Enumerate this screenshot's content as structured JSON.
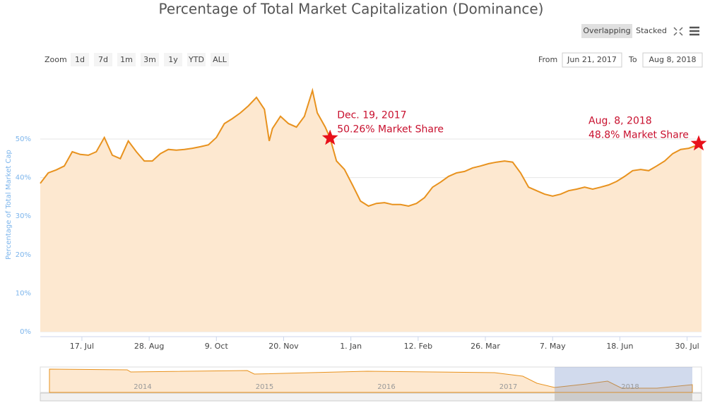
{
  "chart_data": {
    "type": "area",
    "title": "Percentage of Total Market Capitalization (Dominance)",
    "y_label": "Percentage of Total Market Cap",
    "color": "#e8921e",
    "fill": "#fde8d0",
    "x": [
      "2017-06-21",
      "2017-06-26",
      "2017-07-01",
      "2017-07-06",
      "2017-07-11",
      "2017-07-16",
      "2017-07-21",
      "2017-07-26",
      "2017-07-31",
      "2017-08-05",
      "2017-08-10",
      "2017-08-15",
      "2017-08-20",
      "2017-08-25",
      "2017-08-30",
      "2017-09-04",
      "2017-09-09",
      "2017-09-14",
      "2017-09-19",
      "2017-09-24",
      "2017-09-29",
      "2017-10-04",
      "2017-10-09",
      "2017-10-14",
      "2017-10-19",
      "2017-10-24",
      "2017-10-29",
      "2017-11-03",
      "2017-11-08",
      "2017-11-11",
      "2017-11-13",
      "2017-11-18",
      "2017-11-23",
      "2017-11-28",
      "2017-12-03",
      "2017-12-08",
      "2017-12-11",
      "2017-12-16",
      "2017-12-19",
      "2017-12-23",
      "2017-12-28",
      "2018-01-02",
      "2018-01-07",
      "2018-01-12",
      "2018-01-17",
      "2018-01-22",
      "2018-01-27",
      "2018-02-01",
      "2018-02-06",
      "2018-02-11",
      "2018-02-16",
      "2018-02-21",
      "2018-02-26",
      "2018-03-03",
      "2018-03-08",
      "2018-03-13",
      "2018-03-18",
      "2018-03-23",
      "2018-03-28",
      "2018-04-02",
      "2018-04-07",
      "2018-04-12",
      "2018-04-17",
      "2018-04-22",
      "2018-04-27",
      "2018-05-02",
      "2018-05-07",
      "2018-05-12",
      "2018-05-17",
      "2018-05-22",
      "2018-05-27",
      "2018-06-01",
      "2018-06-06",
      "2018-06-11",
      "2018-06-16",
      "2018-06-21",
      "2018-06-26",
      "2018-07-01",
      "2018-07-06",
      "2018-07-11",
      "2018-07-16",
      "2018-07-21",
      "2018-07-26",
      "2018-07-31",
      "2018-08-08"
    ],
    "values": [
      38.5,
      41.2,
      42,
      43,
      46.7,
      46,
      45.8,
      46.7,
      50.4,
      45.8,
      44.9,
      49.5,
      46.7,
      44.3,
      44.3,
      46.2,
      47.3,
      47.1,
      47.3,
      47.6,
      48,
      48.5,
      50.4,
      54,
      55.3,
      56.8,
      58.6,
      60.8,
      57.7,
      49.5,
      52.7,
      55.9,
      54,
      53.1,
      55.9,
      62.6,
      56.8,
      53.1,
      50.26,
      44.3,
      42.1,
      38.1,
      33.9,
      32.6,
      33.3,
      33.5,
      33,
      33,
      32.6,
      33.3,
      34.8,
      37.5,
      38.8,
      40.3,
      41.2,
      41.6,
      42.5,
      43,
      43.6,
      44,
      44.3,
      44,
      41.2,
      37.5,
      36.6,
      35.7,
      35.2,
      35.7,
      36.6,
      37,
      37.5,
      37,
      37.5,
      38.1,
      39,
      40.3,
      41.8,
      42.1,
      41.8,
      43,
      44.3,
      46.2,
      47.3,
      47.6,
      48.8
    ],
    "xlim": [
      "2017-06-21",
      "2018-08-08"
    ],
    "xticks": [
      {
        "value": "2017-07-17",
        "label": "17. Jul"
      },
      {
        "value": "2017-08-28",
        "label": "28. Aug"
      },
      {
        "value": "2017-10-09",
        "label": "9. Oct"
      },
      {
        "value": "2017-11-20",
        "label": "20. Nov"
      },
      {
        "value": "2018-01-01",
        "label": "1. Jan"
      },
      {
        "value": "2018-02-12",
        "label": "12. Feb"
      },
      {
        "value": "2018-03-26",
        "label": "26. Mar"
      },
      {
        "value": "2018-05-07",
        "label": "7. May"
      },
      {
        "value": "2018-06-18",
        "label": "18. Jun"
      },
      {
        "value": "2018-07-30",
        "label": "30. Jul"
      }
    ],
    "ylim": [
      0,
      63
    ],
    "yticks": [
      {
        "value": 0,
        "label": "0%"
      },
      {
        "value": 10,
        "label": "10%"
      },
      {
        "value": 20,
        "label": "20%"
      },
      {
        "value": 30,
        "label": "30%"
      },
      {
        "value": 40,
        "label": "40%"
      },
      {
        "value": 50,
        "label": "50%"
      }
    ],
    "grid": true,
    "annotations": [
      {
        "date": "2017-12-19",
        "value": 50.26,
        "lines": [
          "Dec. 19, 2017",
          "50.26% Market Share"
        ]
      },
      {
        "date": "2018-08-08",
        "value": 48.8,
        "lines": [
          "Aug. 8, 2018",
          "48.8% Market Share"
        ]
      }
    ],
    "modes": [
      "Overlapping",
      "Stacked"
    ],
    "zoom_label": "Zoom",
    "zoom_buttons": [
      "1d",
      "7d",
      "1m",
      "3m",
      "1y",
      "YTD",
      "ALL"
    ],
    "from_label": "From",
    "from": "Jun 21, 2017",
    "to_label": "To",
    "to": "Aug 8, 2018",
    "navigator_labels": [
      "2014",
      "2015",
      "2016",
      "2017",
      "2018"
    ]
  }
}
